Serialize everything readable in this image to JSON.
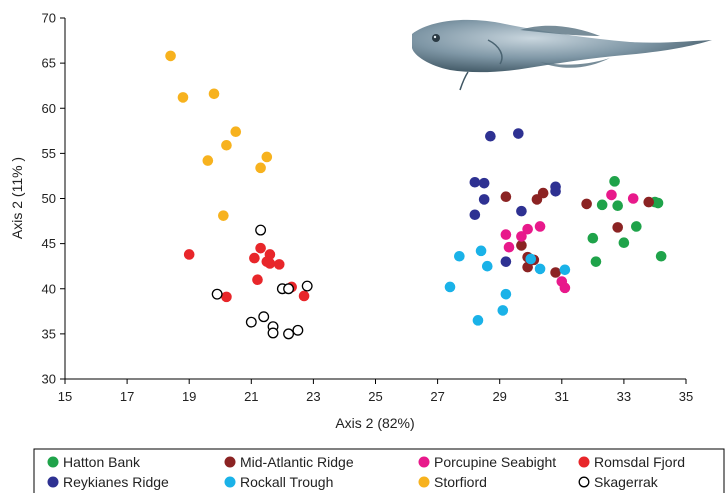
{
  "chart_data": {
    "type": "scatter",
    "xlabel": "Axis 2 (82%)",
    "ylabel": "Axis 2 (11% )",
    "xlim": [
      15,
      35
    ],
    "ylim": [
      30,
      70
    ],
    "x_ticks": [
      "15",
      "17",
      "19",
      "21",
      "23",
      "25",
      "27",
      "29",
      "31",
      "33",
      "35"
    ],
    "y_ticks": [
      "30",
      "35",
      "40",
      "45",
      "50",
      "55",
      "60",
      "65",
      "70"
    ],
    "grid": false,
    "legend_position": "bottom",
    "illustration": "fish-image",
    "series": [
      {
        "name": "Hatton Bank",
        "color": "#1fa34a",
        "marker": "filled",
        "points": [
          [
            32.7,
            51.9
          ],
          [
            32.3,
            49.3
          ],
          [
            32.8,
            49.2
          ],
          [
            34.1,
            49.5
          ],
          [
            34.0,
            49.6
          ],
          [
            32.0,
            45.6
          ],
          [
            33.0,
            45.1
          ],
          [
            33.4,
            46.9
          ],
          [
            32.1,
            43.0
          ],
          [
            34.2,
            43.6
          ]
        ]
      },
      {
        "name": "Mid-Atlantic Ridge",
        "color": "#8b2323",
        "marker": "filled",
        "points": [
          [
            29.2,
            50.2
          ],
          [
            30.2,
            49.9
          ],
          [
            30.4,
            50.6
          ],
          [
            31.8,
            49.4
          ],
          [
            33.8,
            49.6
          ],
          [
            32.8,
            46.8
          ],
          [
            29.7,
            44.8
          ],
          [
            29.9,
            43.5
          ],
          [
            30.1,
            43.2
          ],
          [
            29.9,
            42.4
          ],
          [
            30.8,
            41.8
          ]
        ]
      },
      {
        "name": "Porcupine Seabight",
        "color": "#e8198b",
        "marker": "filled",
        "points": [
          [
            32.6,
            50.4
          ],
          [
            33.3,
            50.0
          ],
          [
            29.2,
            46.0
          ],
          [
            29.7,
            45.8
          ],
          [
            29.9,
            46.6
          ],
          [
            30.3,
            46.9
          ],
          [
            29.3,
            44.6
          ],
          [
            31.0,
            40.8
          ],
          [
            31.1,
            40.1
          ]
        ]
      },
      {
        "name": "Romsdal Fjord",
        "color": "#e8262a",
        "marker": "filled",
        "points": [
          [
            19.0,
            43.8
          ],
          [
            21.3,
            44.5
          ],
          [
            21.1,
            43.4
          ],
          [
            21.6,
            43.8
          ],
          [
            21.6,
            42.8
          ],
          [
            21.9,
            42.7
          ],
          [
            21.2,
            41.0
          ],
          [
            20.2,
            39.1
          ],
          [
            22.3,
            40.2
          ],
          [
            22.7,
            39.2
          ],
          [
            21.5,
            43.0
          ]
        ]
      },
      {
        "name": "Reykianes Ridge",
        "color": "#2e3192",
        "marker": "filled",
        "points": [
          [
            28.7,
            56.9
          ],
          [
            29.6,
            57.2
          ],
          [
            28.2,
            51.8
          ],
          [
            28.5,
            51.7
          ],
          [
            30.8,
            51.3
          ],
          [
            30.8,
            50.8
          ],
          [
            28.5,
            49.9
          ],
          [
            29.7,
            48.6
          ],
          [
            28.2,
            48.2
          ],
          [
            29.2,
            43.0
          ]
        ]
      },
      {
        "name": "Rockall Trough",
        "color": "#1ab2e8",
        "marker": "filled",
        "points": [
          [
            27.7,
            43.6
          ],
          [
            28.4,
            44.2
          ],
          [
            28.6,
            42.5
          ],
          [
            30.0,
            43.3
          ],
          [
            30.3,
            42.2
          ],
          [
            31.1,
            42.1
          ],
          [
            27.4,
            40.2
          ],
          [
            29.2,
            39.4
          ],
          [
            29.1,
            37.6
          ],
          [
            28.3,
            36.5
          ]
        ]
      },
      {
        "name": "Storfiord",
        "color": "#f7b21e",
        "marker": "filled",
        "points": [
          [
            18.4,
            65.8
          ],
          [
            18.8,
            61.2
          ],
          [
            19.8,
            61.6
          ],
          [
            20.5,
            57.4
          ],
          [
            20.2,
            55.9
          ],
          [
            21.5,
            54.6
          ],
          [
            19.6,
            54.2
          ],
          [
            21.3,
            53.4
          ],
          [
            20.1,
            48.1
          ]
        ]
      },
      {
        "name": "Skagerrak",
        "color": "#000000",
        "marker": "hollow",
        "points": [
          [
            21.3,
            46.5
          ],
          [
            19.9,
            39.4
          ],
          [
            22.0,
            40.0
          ],
          [
            22.8,
            40.3
          ],
          [
            22.2,
            40.0
          ],
          [
            21.0,
            36.3
          ],
          [
            21.4,
            36.9
          ],
          [
            21.7,
            35.8
          ],
          [
            21.7,
            35.1
          ],
          [
            22.2,
            35.0
          ],
          [
            22.5,
            35.4
          ]
        ]
      }
    ]
  }
}
